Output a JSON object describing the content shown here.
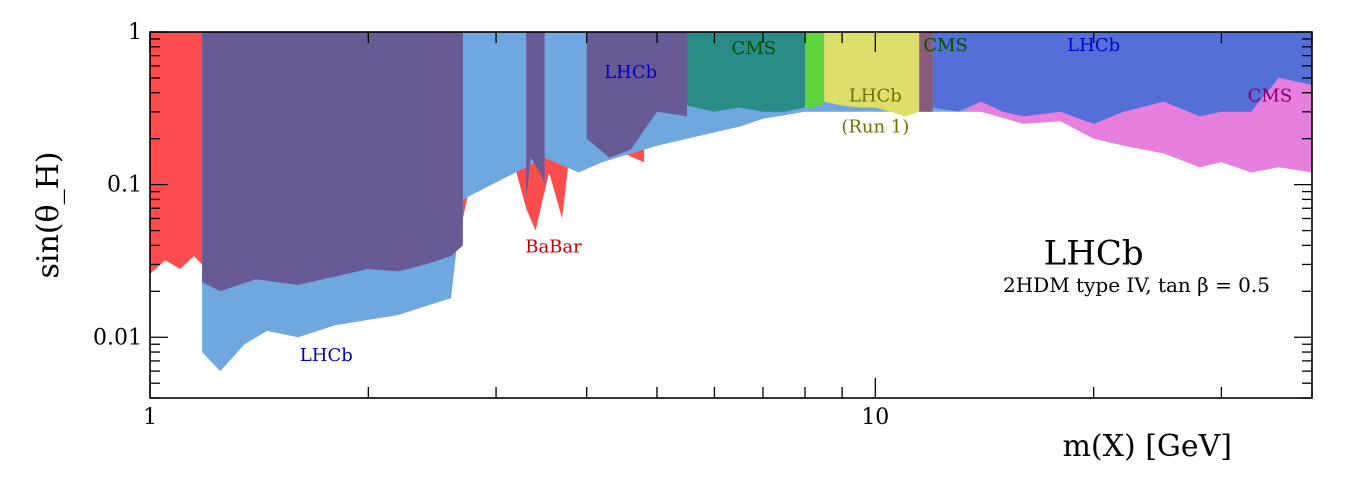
{
  "chart_data": {
    "type": "area",
    "xlabel": "m(X) [GeV]",
    "ylabel": "sin(θ_H)",
    "xscale": "log",
    "yscale": "log",
    "xlim": [
      1,
      40
    ],
    "ylim": [
      0.004,
      1
    ],
    "x_tick_labels": [
      {
        "value": 1,
        "label": "1"
      },
      {
        "value": 10,
        "label": "10"
      }
    ],
    "y_tick_labels": [
      {
        "value": 1,
        "label": "1"
      },
      {
        "value": 0.1,
        "label": "0.1"
      },
      {
        "value": 0.01,
        "label": "0.01"
      }
    ],
    "experiment_label": "LHCb",
    "model_note": "2HDM type IV, tan β = 0.5",
    "series": [
      {
        "name": "BaBar",
        "color": "#ff4d4d",
        "x": [
          1.0,
          1.05,
          1.1,
          1.15,
          1.18,
          2.6,
          2.7,
          2.85,
          3.0,
          3.1,
          3.2,
          3.3,
          3.4,
          3.55,
          3.7,
          3.8,
          3.9,
          4.0,
          4.2,
          4.5,
          4.8
        ],
        "y": [
          0.026,
          0.032,
          0.028,
          0.034,
          0.03,
          0.1,
          0.06,
          0.2,
          0.55,
          0.25,
          0.12,
          0.07,
          0.05,
          0.12,
          0.06,
          0.18,
          0.15,
          0.25,
          0.18,
          0.16,
          0.14
        ]
      },
      {
        "name": "LHCb",
        "color": "#6fa8e0",
        "x": [
          1.18,
          1.25,
          1.35,
          1.45,
          1.6,
          1.8,
          2.0,
          2.2,
          2.4,
          2.6,
          2.65,
          2.7,
          3.5,
          3.9,
          4.2,
          4.6,
          5.0,
          5.5,
          6.0,
          6.5,
          7.0,
          8.0,
          9.0,
          10.0,
          12.0,
          15.0,
          20.0,
          30.0,
          40.0
        ],
        "y": [
          0.008,
          0.006,
          0.009,
          0.011,
          0.01,
          0.012,
          0.013,
          0.014,
          0.016,
          0.018,
          0.04,
          0.08,
          0.15,
          0.12,
          0.14,
          0.16,
          0.18,
          0.2,
          0.22,
          0.24,
          0.27,
          0.3,
          0.3,
          0.3,
          0.3,
          0.3,
          0.3,
          0.3,
          0.3
        ]
      },
      {
        "name": "LHCb (Run 1)",
        "color": "#dede6a",
        "x": [
          8.5,
          9.0,
          9.5,
          10.0,
          10.5,
          11.0,
          11.5
        ],
        "y": [
          0.35,
          0.33,
          0.32,
          0.32,
          0.3,
          0.28,
          0.3
        ]
      },
      {
        "name": "CMS",
        "color": "#e67fde",
        "x": [
          12.0,
          14.0,
          16.0,
          18.0,
          20.0,
          22.0,
          25.0,
          28.0,
          30.0,
          33.0,
          36.0,
          40.0
        ],
        "y": [
          0.32,
          0.3,
          0.25,
          0.26,
          0.2,
          0.18,
          0.16,
          0.13,
          0.14,
          0.12,
          0.13,
          0.12
        ]
      }
    ],
    "annotations": [
      {
        "text": "LHCb",
        "x": 1.75,
        "y": 0.007,
        "color": "#0000c8"
      },
      {
        "text": "BaBar",
        "x": 3.6,
        "y": 0.036,
        "color": "#c00000"
      },
      {
        "text": "LHCb",
        "x": 4.6,
        "y": 0.5,
        "color": "#0000c8"
      },
      {
        "text": "CMS",
        "x": 6.8,
        "y": 0.72,
        "color": "#005000"
      },
      {
        "text": "LHCb",
        "x": 10.0,
        "y": 0.35,
        "color": "#707000"
      },
      {
        "text": "(Run 1)",
        "x": 10.0,
        "y": 0.22,
        "color": "#707000"
      },
      {
        "text": "CMS",
        "x": 12.5,
        "y": 0.75,
        "color": "#005000"
      },
      {
        "text": "LHCb",
        "x": 20.0,
        "y": 0.75,
        "color": "#0000c8"
      },
      {
        "text": "CMS",
        "x": 35.0,
        "y": 0.35,
        "color": "#800070"
      }
    ],
    "overlays": [
      {
        "color": "#675a97",
        "x": [
          1.18,
          1.25,
          1.4,
          1.6,
          1.8,
          2.0,
          2.2,
          2.4,
          2.6,
          2.7
        ],
        "y": [
          0.023,
          0.02,
          0.024,
          0.022,
          0.025,
          0.028,
          0.027,
          0.03,
          0.034,
          0.04
        ]
      },
      {
        "color": "#675a97",
        "x": [
          4.0,
          4.3,
          4.6,
          5.0,
          5.5
        ],
        "y": [
          0.2,
          0.15,
          0.17,
          0.3,
          0.28
        ]
      },
      {
        "color": "#675a97",
        "x": [
          3.3,
          3.35,
          3.45,
          3.5
        ],
        "y": [
          0.08,
          0.15,
          0.12,
          0.1
        ]
      }
    ],
    "band_tops": [
      {
        "color": "#2a8c86",
        "x": [
          5.5,
          6.0,
          6.5,
          7.0,
          7.5,
          8.0
        ],
        "y": [
          0.33,
          0.3,
          0.32,
          0.3,
          0.3,
          0.32
        ]
      },
      {
        "color": "#5cd63b",
        "x": [
          8.0,
          8.2,
          8.5
        ],
        "y": [
          0.32,
          0.32,
          0.34
        ]
      },
      {
        "color": "#8a5a7a",
        "x": [
          11.5,
          11.8,
          12.0
        ],
        "y": [
          0.3,
          0.3,
          0.3
        ]
      },
      {
        "color": "#5470d8",
        "x": [
          12.0,
          13.0,
          14.0,
          15.0,
          16.0,
          18.0,
          20.0,
          22.0,
          25.0,
          28.0,
          30.0,
          33.0,
          36.0,
          40.0
        ],
        "y": [
          0.32,
          0.3,
          0.35,
          0.3,
          0.28,
          0.3,
          0.25,
          0.3,
          0.35,
          0.28,
          0.3,
          0.3,
          0.5,
          0.45
        ]
      }
    ]
  }
}
